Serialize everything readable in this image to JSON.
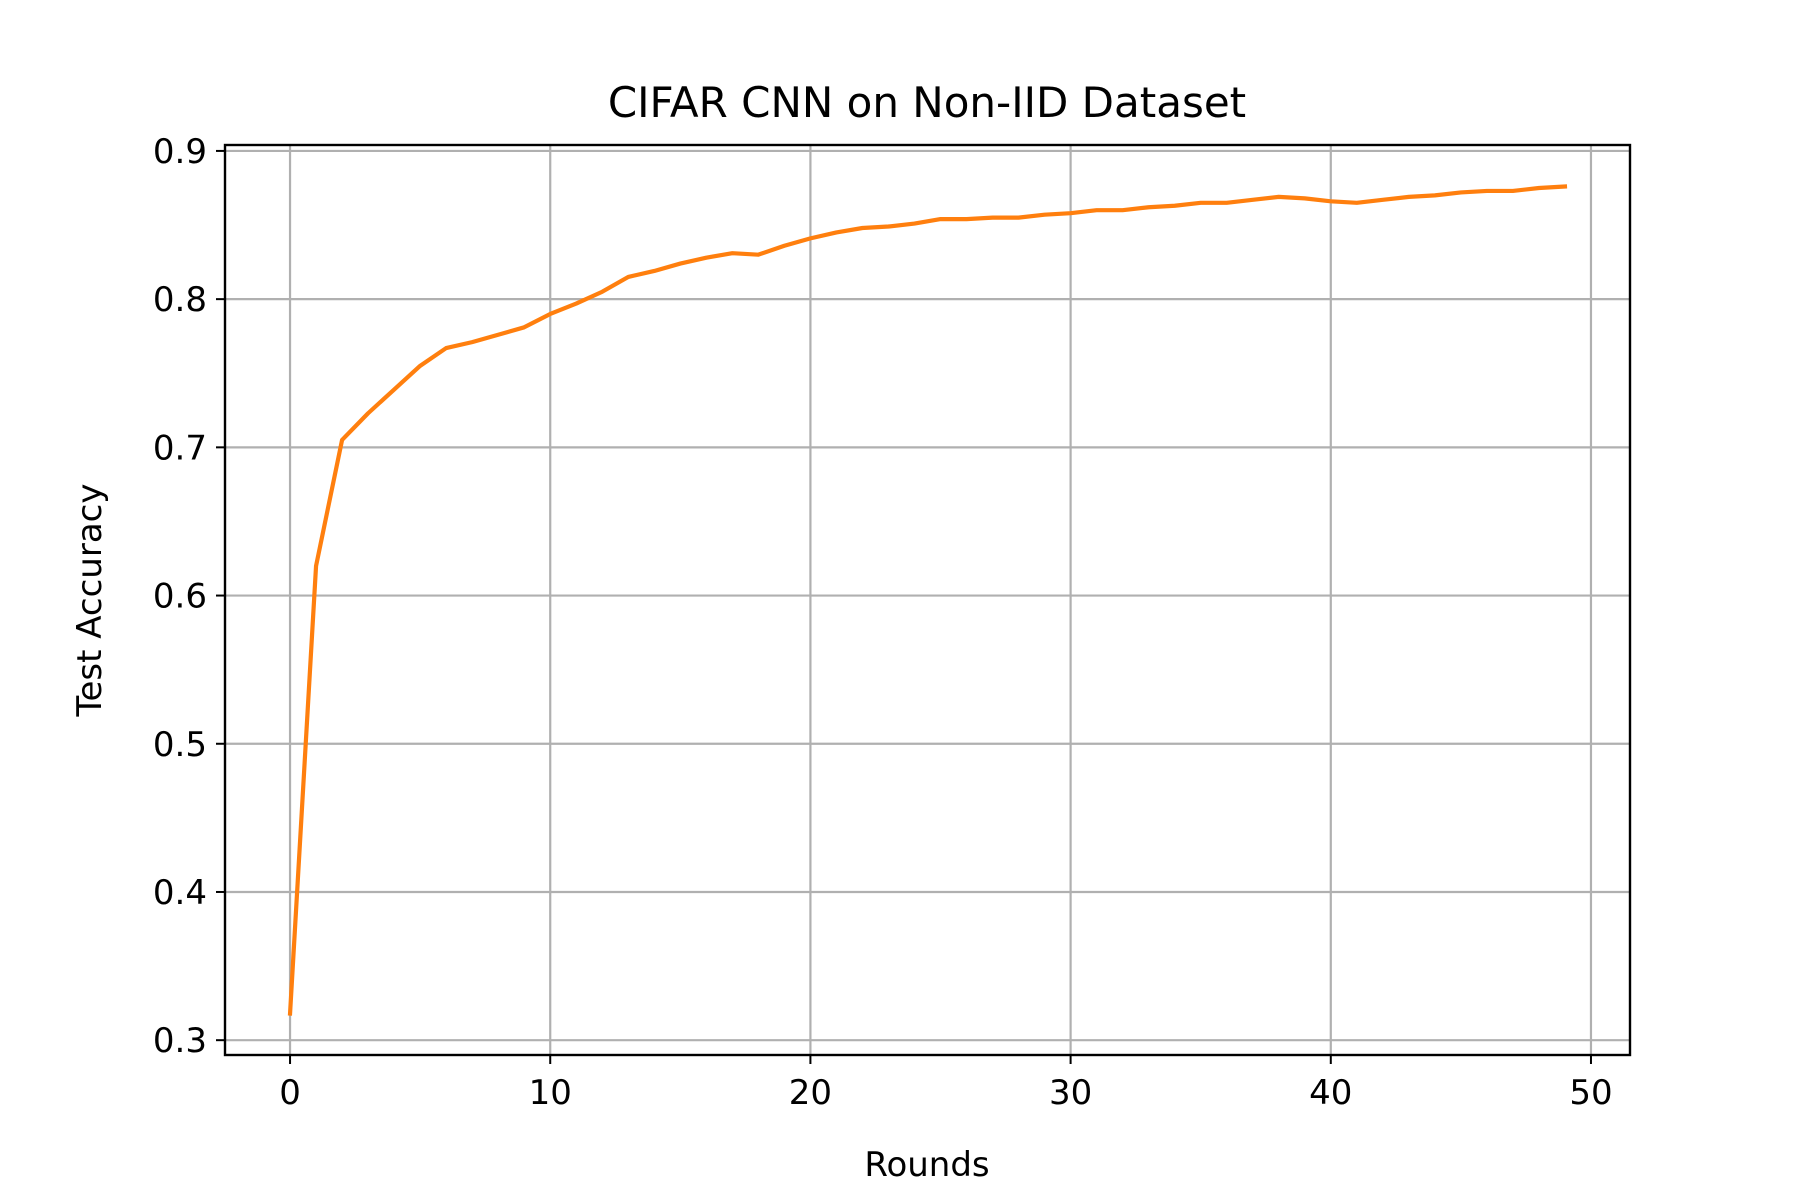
{
  "chart_data": {
    "type": "line",
    "title": "CIFAR CNN on Non-IID Dataset",
    "xlabel": "Rounds",
    "ylabel": "Test Accuracy",
    "xlim": [
      -2.5,
      51.5
    ],
    "ylim": [
      0.29,
      0.904
    ],
    "xticks": [
      0,
      10,
      20,
      30,
      40,
      50
    ],
    "yticks": [
      0.3,
      0.4,
      0.5,
      0.6,
      0.7,
      0.8,
      0.9
    ],
    "xtick_labels": [
      "0",
      "10",
      "20",
      "30",
      "40",
      "50"
    ],
    "ytick_labels": [
      "0.3",
      "0.4",
      "0.5",
      "0.6",
      "0.7",
      "0.8",
      "0.9"
    ],
    "grid": true,
    "legend": "none",
    "series": [
      {
        "color": "#ff7f0e",
        "x": [
          0,
          1,
          2,
          3,
          4,
          5,
          6,
          7,
          8,
          9,
          10,
          11,
          12,
          13,
          14,
          15,
          16,
          17,
          18,
          19,
          20,
          21,
          22,
          23,
          24,
          25,
          26,
          27,
          28,
          29,
          30,
          31,
          32,
          33,
          34,
          35,
          36,
          37,
          38,
          39,
          40,
          41,
          42,
          43,
          44,
          45,
          46,
          47,
          48,
          49
        ],
        "y": [
          0.318,
          0.62,
          0.705,
          0.723,
          0.739,
          0.755,
          0.767,
          0.771,
          0.776,
          0.781,
          0.79,
          0.797,
          0.805,
          0.815,
          0.819,
          0.824,
          0.828,
          0.831,
          0.83,
          0.836,
          0.841,
          0.845,
          0.848,
          0.849,
          0.851,
          0.854,
          0.854,
          0.855,
          0.855,
          0.857,
          0.858,
          0.86,
          0.86,
          0.862,
          0.863,
          0.865,
          0.865,
          0.867,
          0.869,
          0.868,
          0.866,
          0.865,
          0.867,
          0.869,
          0.87,
          0.872,
          0.873,
          0.873,
          0.875,
          0.876
        ]
      }
    ]
  }
}
